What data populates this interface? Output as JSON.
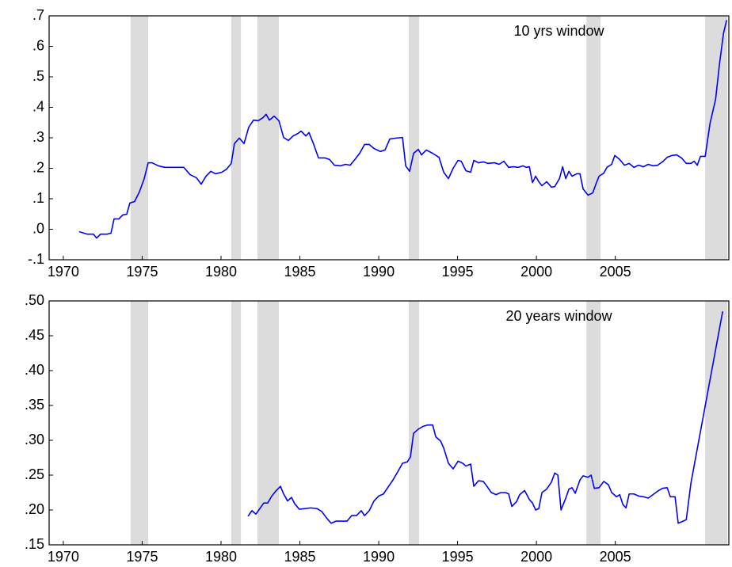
{
  "chart_data": [
    {
      "type": "line",
      "annotation": "10 yrs window",
      "x": [
        1971.01,
        1971.51,
        1971.91,
        1972.11,
        1972.36,
        1972.76,
        1973.02,
        1973.22,
        1973.52,
        1973.77,
        1974.02,
        1974.22,
        1974.52,
        1974.82,
        1975.13,
        1975.38,
        1975.63,
        1976.03,
        1976.43,
        1976.83,
        1977.24,
        1977.64,
        1978.04,
        1978.44,
        1978.74,
        1979.05,
        1979.35,
        1979.65,
        1980.05,
        1980.35,
        1980.65,
        1980.85,
        1981.16,
        1981.46,
        1981.76,
        1982.06,
        1982.36,
        1982.66,
        1982.86,
        1983.07,
        1983.37,
        1983.67,
        1983.97,
        1984.27,
        1984.57,
        1984.87,
        1985.08,
        1985.38,
        1985.58,
        1985.88,
        1986.18,
        1986.58,
        1986.88,
        1987.19,
        1987.59,
        1987.89,
        1988.19,
        1988.49,
        1988.79,
        1989.1,
        1989.4,
        1989.7,
        1990.1,
        1990.4,
        1990.7,
        1991.11,
        1991.51,
        1991.71,
        1991.96,
        1992.21,
        1992.51,
        1992.71,
        1993.02,
        1993.42,
        1993.82,
        1994.12,
        1994.42,
        1994.72,
        1995.03,
        1995.23,
        1995.53,
        1995.83,
        1996.03,
        1996.33,
        1996.63,
        1996.93,
        1997.34,
        1997.64,
        1997.94,
        1998.24,
        1998.54,
        1998.84,
        1999.15,
        1999.35,
        1999.55,
        1999.75,
        1999.95,
        2000.15,
        2000.35,
        2000.65,
        2000.95,
        2001.16,
        2001.46,
        2001.66,
        2001.86,
        2002.06,
        2002.26,
        2002.56,
        2002.76,
        2002.96,
        2003.27,
        2003.57,
        2003.77,
        2003.97,
        2004.27,
        2004.47,
        2004.77,
        2004.97,
        2005.28,
        2005.58,
        2005.88,
        2006.18,
        2006.48,
        2006.78,
        2007.09,
        2007.39,
        2007.69,
        2007.99,
        2008.29,
        2008.59,
        2008.89,
        2009.2,
        2009.5,
        2009.8,
        2010.0,
        2010.2,
        2010.4,
        2010.7,
        2011.01,
        2011.36,
        2011.61,
        2011.86,
        2012.06
      ],
      "series": [
        {
          "color": "#0000ff",
          "values": [
            -0.008,
            -0.016,
            -0.016,
            -0.029,
            -0.016,
            -0.016,
            -0.013,
            0.034,
            0.034,
            0.047,
            0.049,
            0.086,
            0.091,
            0.122,
            0.166,
            0.218,
            0.218,
            0.208,
            0.203,
            0.203,
            0.203,
            0.203,
            0.179,
            0.169,
            0.148,
            0.174,
            0.19,
            0.182,
            0.187,
            0.197,
            0.216,
            0.281,
            0.299,
            0.281,
            0.335,
            0.358,
            0.356,
            0.366,
            0.377,
            0.358,
            0.371,
            0.356,
            0.301,
            0.291,
            0.306,
            0.314,
            0.322,
            0.306,
            0.317,
            0.278,
            0.234,
            0.234,
            0.229,
            0.21,
            0.208,
            0.213,
            0.21,
            0.229,
            0.249,
            0.278,
            0.278,
            0.265,
            0.255,
            0.26,
            0.296,
            0.299,
            0.301,
            0.208,
            0.19,
            0.249,
            0.262,
            0.244,
            0.26,
            0.249,
            0.236,
            0.187,
            0.166,
            0.2,
            0.226,
            0.223,
            0.192,
            0.187,
            0.226,
            0.218,
            0.221,
            0.216,
            0.218,
            0.213,
            0.223,
            0.203,
            0.205,
            0.203,
            0.208,
            0.203,
            0.205,
            0.153,
            0.174,
            0.156,
            0.143,
            0.156,
            0.138,
            0.14,
            0.166,
            0.205,
            0.166,
            0.19,
            0.174,
            0.182,
            0.182,
            0.132,
            0.112,
            0.119,
            0.148,
            0.174,
            0.184,
            0.203,
            0.213,
            0.242,
            0.229,
            0.21,
            0.216,
            0.203,
            0.21,
            0.205,
            0.213,
            0.208,
            0.21,
            0.221,
            0.236,
            0.242,
            0.244,
            0.234,
            0.216,
            0.216,
            0.223,
            0.21,
            0.239,
            0.239,
            0.348,
            0.426,
            0.543,
            0.642,
            0.686
          ]
        }
      ],
      "shading": [
        [
          1974.27,
          1975.38
        ],
        [
          1980.65,
          1981.26
        ],
        [
          1982.31,
          1983.67
        ],
        [
          1991.91,
          1992.56
        ],
        [
          2003.17,
          2004.07
        ],
        [
          2010.7,
          2012.11
        ]
      ],
      "shade_color": "#dcdcdc",
      "xlim": [
        1969.1,
        2012.2
      ],
      "xticks": [
        1970,
        1975,
        1980,
        1985,
        1990,
        1995,
        2000,
        2005
      ],
      "ylim": [
        -0.1,
        0.7
      ],
      "yticks": [
        {
          "value": -0.1,
          "label": "-.1"
        },
        {
          "value": 0,
          "label": ".0"
        },
        {
          "value": 0.1,
          "label": ".1"
        },
        {
          "value": 0.2,
          "label": ".2"
        },
        {
          "value": 0.3,
          "label": ".3"
        },
        {
          "value": 0.4,
          "label": ".4"
        },
        {
          "value": 0.5,
          "label": ".5"
        },
        {
          "value": 0.6,
          "label": ".6"
        },
        {
          "value": 0.7,
          "label": ".7"
        }
      ]
    },
    {
      "type": "line",
      "annotation": "20 years window",
      "x": [
        1981.71,
        1981.96,
        1982.21,
        1982.46,
        1982.71,
        1982.96,
        1983.22,
        1983.47,
        1983.77,
        1983.97,
        1984.22,
        1984.47,
        1984.67,
        1984.97,
        1985.33,
        1985.68,
        1986.08,
        1986.38,
        1986.68,
        1986.98,
        1987.29,
        1987.69,
        1987.99,
        1988.29,
        1988.59,
        1988.89,
        1989.1,
        1989.4,
        1989.7,
        1990.0,
        1990.3,
        1990.6,
        1990.9,
        1991.21,
        1991.51,
        1991.81,
        1992.01,
        1992.21,
        1992.51,
        1992.81,
        1993.12,
        1993.42,
        1993.62,
        1993.92,
        1994.12,
        1994.42,
        1994.72,
        1995.03,
        1995.33,
        1995.53,
        1995.83,
        1996.03,
        1996.33,
        1996.63,
        1996.83,
        1997.14,
        1997.44,
        1997.74,
        1998.04,
        1998.24,
        1998.44,
        1998.74,
        1998.94,
        1999.25,
        1999.55,
        1999.75,
        1999.95,
        2000.15,
        2000.35,
        2000.65,
        2000.95,
        2001.16,
        2001.36,
        2001.56,
        2001.86,
        2002.06,
        2002.26,
        2002.46,
        2002.76,
        2002.96,
        2003.27,
        2003.47,
        2003.67,
        2003.97,
        2004.27,
        2004.57,
        2004.77,
        2005.08,
        2005.28,
        2005.48,
        2005.68,
        2005.88,
        2006.18,
        2006.48,
        2006.78,
        2007.09,
        2007.39,
        2007.69,
        2007.99,
        2008.29,
        2008.49,
        2008.79,
        2008.99,
        2009.3,
        2009.5,
        2009.8,
        2011.81
      ],
      "series": [
        {
          "color": "#0000ff",
          "values": [
            0.191,
            0.199,
            0.194,
            0.202,
            0.21,
            0.21,
            0.22,
            0.227,
            0.234,
            0.223,
            0.213,
            0.218,
            0.209,
            0.201,
            0.202,
            0.203,
            0.202,
            0.198,
            0.189,
            0.181,
            0.184,
            0.184,
            0.184,
            0.192,
            0.192,
            0.199,
            0.192,
            0.199,
            0.213,
            0.22,
            0.223,
            0.233,
            0.243,
            0.255,
            0.267,
            0.269,
            0.276,
            0.31,
            0.316,
            0.32,
            0.322,
            0.322,
            0.305,
            0.299,
            0.289,
            0.267,
            0.259,
            0.27,
            0.267,
            0.263,
            0.266,
            0.234,
            0.242,
            0.241,
            0.235,
            0.225,
            0.222,
            0.225,
            0.225,
            0.223,
            0.205,
            0.212,
            0.222,
            0.228,
            0.215,
            0.21,
            0.2,
            0.202,
            0.225,
            0.23,
            0.24,
            0.253,
            0.25,
            0.2,
            0.217,
            0.23,
            0.232,
            0.224,
            0.243,
            0.249,
            0.247,
            0.25,
            0.231,
            0.232,
            0.241,
            0.236,
            0.225,
            0.219,
            0.222,
            0.208,
            0.203,
            0.223,
            0.223,
            0.22,
            0.219,
            0.217,
            0.222,
            0.227,
            0.231,
            0.232,
            0.219,
            0.219,
            0.181,
            0.184,
            0.186,
            0.239,
            0.485
          ]
        }
      ],
      "shading": [
        [
          1974.27,
          1975.38
        ],
        [
          1980.65,
          1981.26
        ],
        [
          1982.31,
          1983.67
        ],
        [
          1991.91,
          1992.56
        ],
        [
          2003.17,
          2004.07
        ],
        [
          2010.7,
          2012.11
        ]
      ],
      "shade_color": "#dcdcdc",
      "xlim": [
        1969.1,
        2012.2
      ],
      "xticks": [
        1970,
        1975,
        1980,
        1985,
        1990,
        1995,
        2000,
        2005
      ],
      "ylim": [
        0.15,
        0.5
      ],
      "yticks": [
        {
          "value": 0.15,
          "label": ".15"
        },
        {
          "value": 0.2,
          "label": ".20"
        },
        {
          "value": 0.25,
          "label": ".25"
        },
        {
          "value": 0.3,
          "label": ".30"
        },
        {
          "value": 0.35,
          "label": ".35"
        },
        {
          "value": 0.4,
          "label": ".40"
        },
        {
          "value": 0.45,
          "label": ".45"
        },
        {
          "value": 0.5,
          "label": ".50"
        }
      ]
    }
  ]
}
